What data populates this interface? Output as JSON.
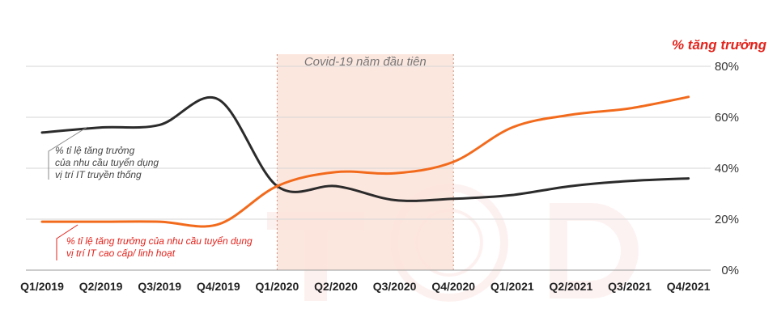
{
  "chart_data": {
    "type": "line",
    "categories": [
      "Q1/2019",
      "Q2/2019",
      "Q3/2019",
      "Q4/2019",
      "Q1/2020",
      "Q2/2020",
      "Q3/2020",
      "Q4/2020",
      "Q1/2021",
      "Q2/2021",
      "Q3/2021",
      "Q4/2021"
    ],
    "y_unit_label": "% tăng trưởng",
    "y_ticks": [
      "80%",
      "60%",
      "40%",
      "20%",
      "0%"
    ],
    "ylim": [
      0,
      80
    ],
    "grid": "horizontal",
    "highlight_band": {
      "from": "Q1/2020",
      "to": "Q4/2020",
      "label": "Covid-19 năm đầu tiên",
      "color": "#fbe3d9"
    },
    "series": [
      {
        "key": "traditional",
        "color": "#2b2b2b",
        "label_lines": [
          "% tỉ lệ tăng trưởng",
          "của nhu cầu tuyển dụng",
          "vị trí IT truyền thống"
        ],
        "values": [
          54,
          56,
          57,
          67,
          33,
          33,
          27.5,
          28,
          29.5,
          33,
          35,
          36
        ]
      },
      {
        "key": "senior_flexible",
        "color": "#f26b1d",
        "label_lines": [
          "% tỉ lệ tăng trưởng của nhu cầu tuyển dụng",
          "vị trí IT cao cấp/ linh hoạt"
        ],
        "values": [
          19,
          19,
          19,
          18,
          33,
          38.5,
          38,
          42.5,
          56,
          61,
          63.5,
          68
        ]
      }
    ]
  }
}
